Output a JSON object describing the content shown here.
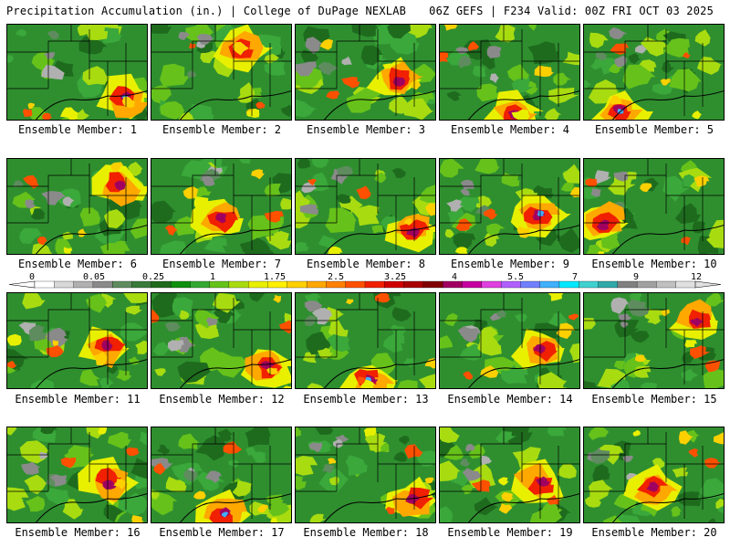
{
  "header": {
    "title": "Precipitation Accumulation (in.) | College of DuPage NEXLAB",
    "run_info": "06Z GEFS | F234 Valid: 00Z FRI OCT 03 2025"
  },
  "member_label_prefix": "Ensemble Member: ",
  "members": [
    {
      "id": "1",
      "label": "Ensemble Member: 1",
      "heavy": "se"
    },
    {
      "id": "2",
      "label": "Ensemble Member: 2",
      "heavy": "n"
    },
    {
      "id": "3",
      "label": "Ensemble Member: 3",
      "heavy": "e"
    },
    {
      "id": "4",
      "label": "Ensemble Member: 4",
      "heavy": "s"
    },
    {
      "id": "5",
      "label": "Ensemble Member: 5",
      "heavy": "sw"
    },
    {
      "id": "6",
      "label": "Ensemble Member: 6",
      "heavy": "ne"
    },
    {
      "id": "7",
      "label": "Ensemble Member: 7",
      "heavy": "c"
    },
    {
      "id": "8",
      "label": "Ensemble Member: 8",
      "heavy": "se"
    },
    {
      "id": "9",
      "label": "Ensemble Member: 9",
      "heavy": "e"
    },
    {
      "id": "10",
      "label": "Ensemble Member: 10",
      "heavy": "w"
    },
    {
      "id": "11",
      "label": "Ensemble Member: 11",
      "heavy": "e"
    },
    {
      "id": "12",
      "label": "Ensemble Member: 12",
      "heavy": "se"
    },
    {
      "id": "13",
      "label": "Ensemble Member: 13",
      "heavy": "s"
    },
    {
      "id": "14",
      "label": "Ensemble Member: 14",
      "heavy": "e"
    },
    {
      "id": "15",
      "label": "Ensemble Member: 15",
      "heavy": "ne"
    },
    {
      "id": "16",
      "label": "Ensemble Member: 16",
      "heavy": "e"
    },
    {
      "id": "17",
      "label": "Ensemble Member: 17",
      "heavy": "s"
    },
    {
      "id": "18",
      "label": "Ensemble Member: 18",
      "heavy": "se"
    },
    {
      "id": "19",
      "label": "Ensemble Member: 19",
      "heavy": "e"
    },
    {
      "id": "20",
      "label": "Ensemble Member: 20",
      "heavy": "c"
    }
  ],
  "colorbar": {
    "labels": [
      "0",
      "0.05",
      "0.25",
      "1",
      "1.75",
      "2.5",
      "3.25",
      "4",
      "5.5",
      "7",
      "9",
      "12"
    ],
    "colors": [
      "#ffffff",
      "#d8d8d8",
      "#b0b0b0",
      "#8a8a8a",
      "#5e8c5e",
      "#3a7a3a",
      "#1e6b1e",
      "#0f8f0f",
      "#33a833",
      "#66c21a",
      "#a8dc10",
      "#e8f000",
      "#fff000",
      "#ffd000",
      "#ffa800",
      "#ff8000",
      "#ff5000",
      "#f02000",
      "#d00000",
      "#a80000",
      "#800000",
      "#a00060",
      "#c800a0",
      "#e040e0",
      "#b060ff",
      "#7080ff",
      "#40b0ff",
      "#00e8ff",
      "#40d0d0",
      "#30a8a8",
      "#808080",
      "#a0a0a0",
      "#c0c0c0",
      "#e0e0e0"
    ]
  }
}
